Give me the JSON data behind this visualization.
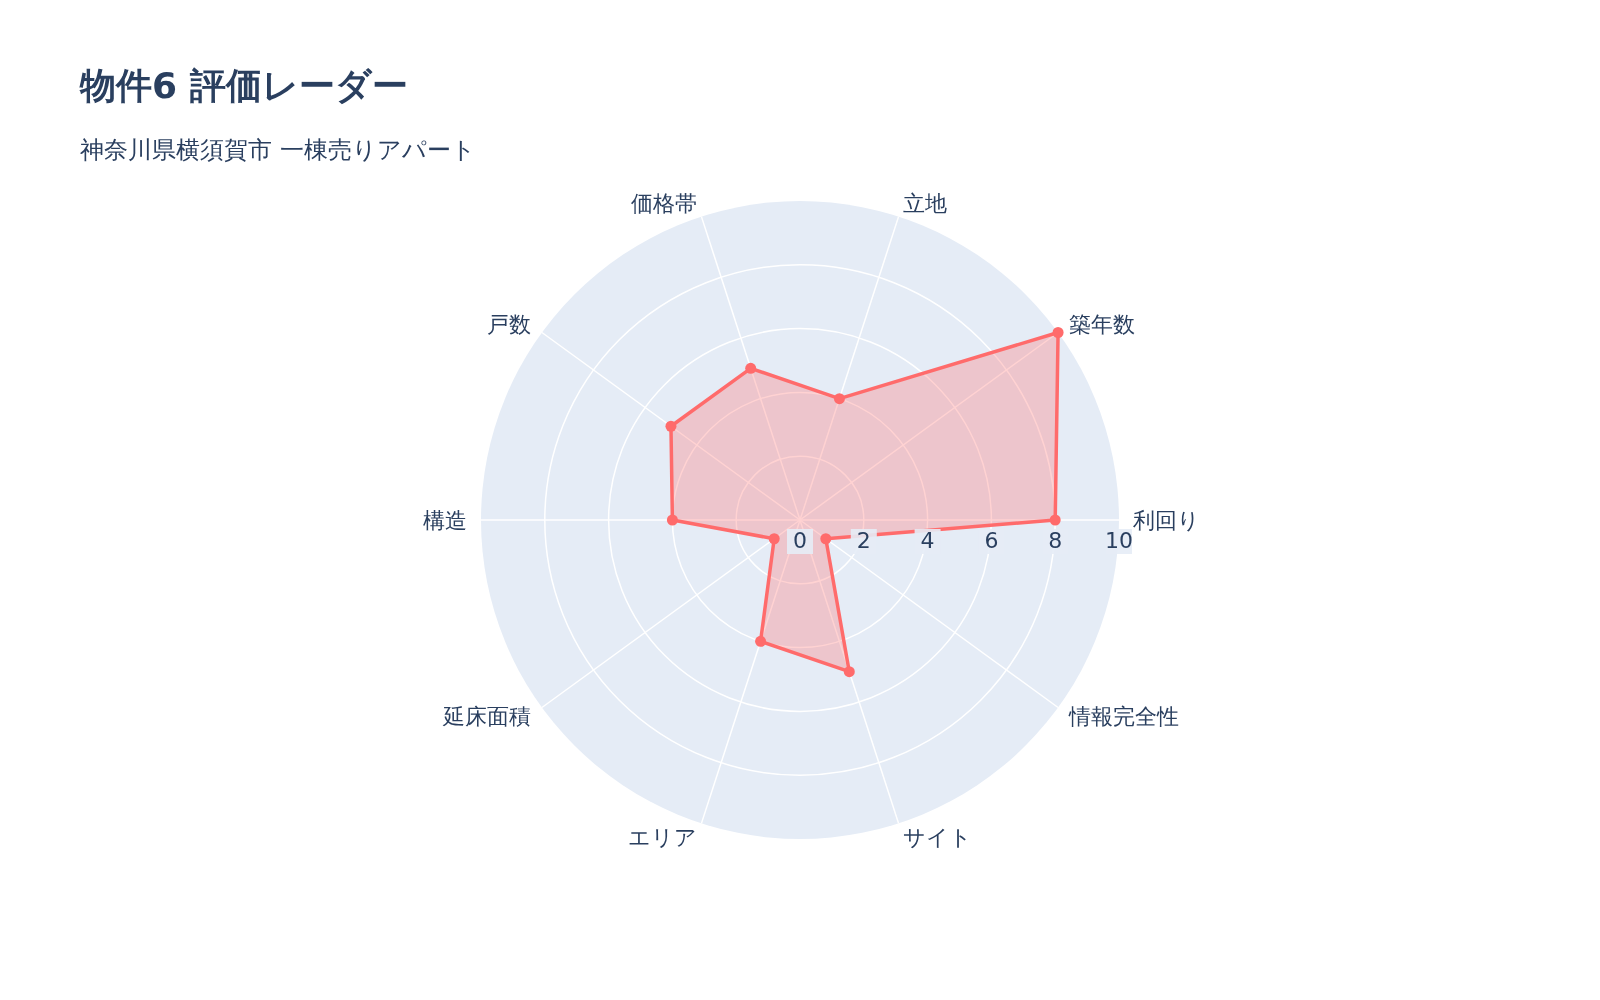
{
  "chart_data": {
    "type": "radar",
    "title": "物件6 評価レーダー",
    "subtitle": "神奈川県横須賀市 一棟売りアパート",
    "categories": [
      "立地",
      "築年数",
      "利回り",
      "情報完全性",
      "サイト",
      "エリア",
      "延床面積",
      "構造",
      "戸数",
      "価格帯"
    ],
    "series": [
      {
        "color": "#ff6b6b",
        "values": [
          4,
          10,
          8,
          1,
          5,
          4,
          1,
          4,
          5,
          5
        ]
      }
    ],
    "ylim": [
      0,
      10
    ],
    "yticks": [
      0,
      2,
      4,
      6,
      8,
      10
    ],
    "grid": true,
    "marker": "circle"
  }
}
